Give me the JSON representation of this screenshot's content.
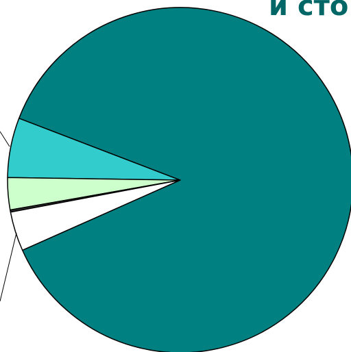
{
  "chart_data": {
    "type": "pie",
    "title": "и сто",
    "values": [
      5.6,
      3.0,
      0.2,
      3.7,
      87.5
    ],
    "colors": [
      "#33cccc",
      "#ccffcc",
      "#333333",
      "#ffffff",
      "#008080"
    ]
  }
}
